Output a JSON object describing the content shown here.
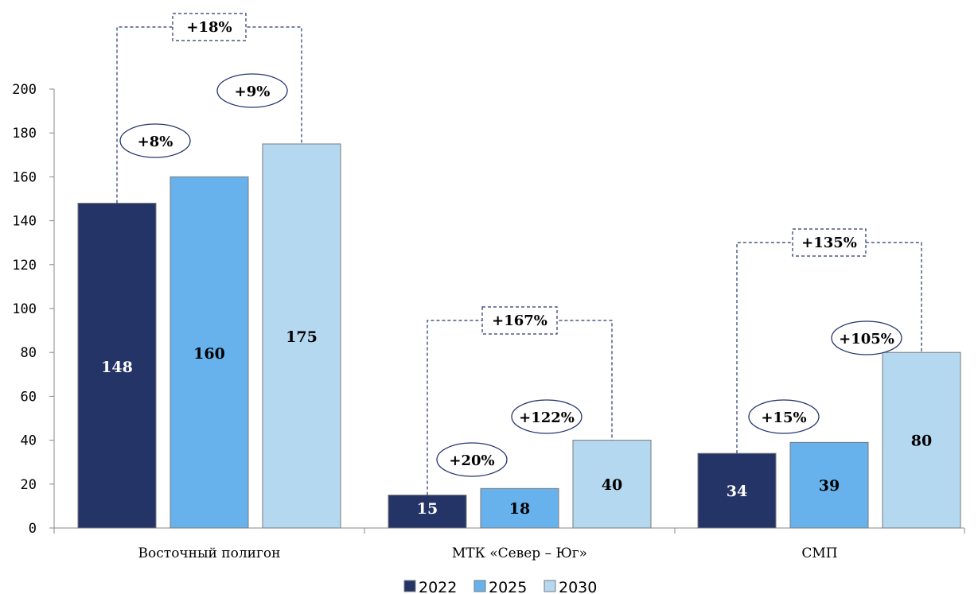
{
  "chart_data": {
    "type": "bar",
    "categories": [
      "Восточный полигон",
      "МТК «Север – Юг»",
      "СМП"
    ],
    "series": [
      {
        "name": "2022",
        "values": [
          148,
          15,
          34
        ],
        "color": "#253466"
      },
      {
        "name": "2025",
        "values": [
          160,
          18,
          39
        ],
        "color": "#67b2ec"
      },
      {
        "name": "2030",
        "values": [
          175,
          40,
          80
        ],
        "color": "#b5d8f1"
      }
    ],
    "data_labels": [
      [
        "148",
        "160",
        "175"
      ],
      [
        "15",
        "18",
        "40"
      ],
      [
        "34",
        "39",
        "80"
      ]
    ],
    "yticks": [
      0,
      20,
      40,
      60,
      80,
      100,
      120,
      140,
      160,
      180,
      200
    ],
    "ylim": [
      0,
      200
    ],
    "legend_position": "bottom",
    "grid": false,
    "annotations": {
      "step_1": [
        "+8%",
        "+20%",
        "+15%"
      ],
      "step_2": [
        "+9%",
        "+122%",
        "+105%"
      ],
      "total": [
        "+18%",
        "+167%",
        "+135%"
      ]
    }
  }
}
